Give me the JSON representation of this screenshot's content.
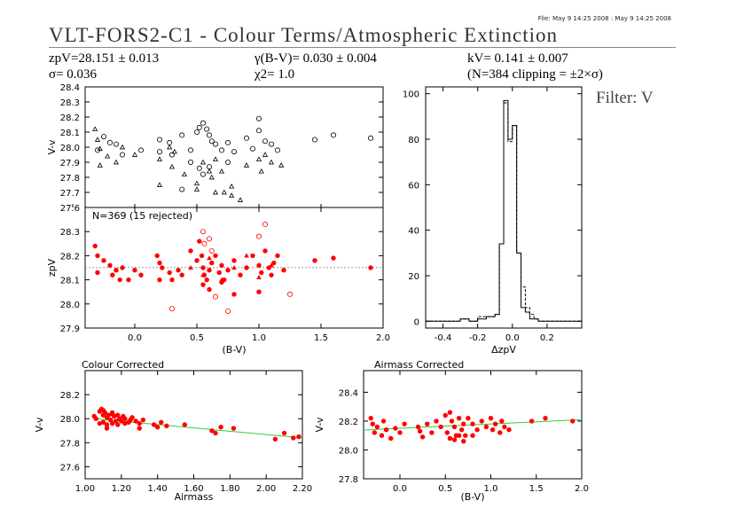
{
  "header": {
    "file_stamp": "File: May  9 14:25 2008 : May  9 14:25 2008",
    "title": "VLT-FORS2-C1 - Colour Terms/Atmospheric Extinction",
    "zp_line": "zpV=28.151 ± 0.013",
    "sigma_line": "σ= 0.036",
    "gamma_line": "γ(B-V)= 0.030 ± 0.004",
    "chi_line": "χ2= 1.0",
    "k_line": "kV= 0.141 ± 0.007",
    "n_line": "(N=384 clipping = ±2×σ)",
    "filter_label": "Filter: V"
  },
  "chart_data": [
    {
      "id": "raw-vv",
      "type": "scatter",
      "title": "",
      "xlabel": "",
      "ylabel": "V-v",
      "xlim": [
        -0.4,
        2.0
      ],
      "ylim": [
        27.6,
        28.4
      ],
      "yticks": [
        27.6,
        27.7,
        27.8,
        27.9,
        28.0,
        28.1,
        28.2,
        28.3,
        28.4
      ],
      "markers": [
        "circle",
        "triangle"
      ],
      "color": "#000000",
      "series": [
        {
          "marker": "circle",
          "x": [
            -0.3,
            -0.25,
            -0.2,
            -0.15,
            -0.1,
            0.05,
            0.2,
            0.2,
            0.28,
            0.3,
            0.38,
            0.45,
            0.5,
            0.52,
            0.55,
            0.58,
            0.6,
            0.62,
            0.65,
            0.7,
            0.75,
            0.8,
            0.9,
            1.0,
            1.05,
            1.1,
            1.15,
            1.45,
            1.6,
            1.9,
            0.38,
            0.55,
            0.6,
            0.75,
            0.95,
            1.0,
            0.45,
            0.52
          ],
          "y": [
            27.98,
            28.07,
            28.03,
            28.02,
            27.95,
            27.98,
            28.05,
            27.97,
            28.03,
            27.95,
            28.08,
            27.98,
            28.1,
            28.13,
            28.16,
            28.12,
            28.08,
            28.04,
            28.02,
            27.98,
            28.03,
            27.97,
            28.06,
            28.19,
            28.04,
            28.02,
            27.98,
            28.05,
            28.08,
            28.06,
            27.72,
            27.82,
            27.87,
            27.9,
            27.99,
            28.11,
            27.9,
            27.86
          ]
        },
        {
          "marker": "triangle",
          "x": [
            -0.32,
            -0.3,
            -0.28,
            -0.22,
            -0.15,
            -0.1,
            0.0,
            0.2,
            0.28,
            0.3,
            0.32,
            0.4,
            0.5,
            0.55,
            0.6,
            0.65,
            0.7,
            0.72,
            0.78,
            0.85,
            0.9,
            1.0,
            1.02,
            1.05,
            1.1,
            1.18,
            0.62,
            0.65,
            0.78,
            -0.28,
            0.2,
            0.5
          ],
          "y": [
            28.12,
            28.05,
            27.99,
            27.94,
            27.9,
            28.0,
            27.95,
            27.92,
            28.0,
            27.87,
            27.97,
            27.82,
            27.76,
            27.9,
            27.84,
            27.92,
            27.84,
            27.7,
            27.74,
            27.65,
            27.88,
            27.92,
            27.84,
            27.95,
            27.9,
            27.88,
            27.8,
            27.7,
            27.68,
            27.88,
            27.75,
            27.72
          ]
        }
      ]
    },
    {
      "id": "zp-vs-colour",
      "type": "scatter",
      "title": "",
      "annotation": "N=369 (15 rejected)",
      "xlabel": "(B-V)",
      "ylabel": "zpV",
      "xlim": [
        -0.4,
        2.0
      ],
      "ylim": [
        27.9,
        28.4
      ],
      "xticks": [
        0.0,
        0.5,
        1.0,
        1.5,
        2.0
      ],
      "yticks": [
        27.9,
        28.0,
        28.1,
        28.2,
        28.3
      ],
      "fit_line_y": 28.151,
      "color": "#ff0000",
      "series": [
        {
          "name": "kept",
          "marker": "filled",
          "x": [
            -0.32,
            -0.3,
            -0.25,
            -0.2,
            -0.18,
            -0.15,
            -0.12,
            -0.1,
            -0.05,
            0.0,
            0.05,
            0.18,
            0.2,
            0.22,
            0.28,
            0.3,
            0.35,
            0.38,
            0.45,
            0.5,
            0.52,
            0.54,
            0.55,
            0.56,
            0.58,
            0.6,
            0.62,
            0.65,
            0.68,
            0.7,
            0.72,
            0.75,
            0.8,
            0.85,
            0.9,
            0.95,
            1.0,
            1.02,
            1.05,
            1.08,
            1.1,
            1.12,
            1.15,
            1.2,
            1.45,
            1.6,
            1.9,
            0.55,
            0.6,
            0.7,
            0.8,
            -0.3,
            0.2,
            1.0
          ],
          "y": [
            28.24,
            28.2,
            28.18,
            28.16,
            28.12,
            28.14,
            28.1,
            28.15,
            28.1,
            28.14,
            28.12,
            28.2,
            28.17,
            28.15,
            28.13,
            28.1,
            28.14,
            28.12,
            28.22,
            28.18,
            28.26,
            28.2,
            28.15,
            28.12,
            28.1,
            28.14,
            28.17,
            28.2,
            28.13,
            28.16,
            28.1,
            28.14,
            28.18,
            28.12,
            28.15,
            28.2,
            28.16,
            28.13,
            28.22,
            28.15,
            28.12,
            28.17,
            28.2,
            28.14,
            28.18,
            28.19,
            28.15,
            28.08,
            28.06,
            28.09,
            28.04,
            28.13,
            28.1,
            28.05
          ]
        },
        {
          "name": "rejected",
          "marker": "open",
          "x": [
            0.55,
            0.6,
            0.3,
            1.05,
            0.75,
            0.65,
            1.25,
            1.0,
            0.56,
            0.62
          ],
          "y": [
            28.3,
            28.27,
            27.98,
            28.33,
            27.97,
            28.03,
            28.04,
            28.28,
            28.25,
            28.22
          ]
        },
        {
          "name": "triangles",
          "marker": "triangle",
          "x": [
            0.45,
            0.55,
            0.7,
            0.8,
            0.9,
            1.0,
            1.1,
            0.6
          ],
          "y": [
            28.15,
            28.12,
            28.1,
            28.15,
            28.2,
            28.11,
            28.16,
            28.19
          ]
        }
      ]
    },
    {
      "id": "histogram",
      "type": "bar",
      "title": "",
      "xlabel": "ΔzpV",
      "ylabel": "",
      "xlim": [
        -0.5,
        0.4
      ],
      "ylim": [
        -3,
        103
      ],
      "xticks": [
        -0.4,
        -0.2,
        0.0,
        0.2
      ],
      "yticks": [
        0,
        20,
        40,
        60,
        80,
        100
      ],
      "bin_edges": [
        -0.5,
        -0.4,
        -0.35,
        -0.3,
        -0.25,
        -0.2,
        -0.15,
        -0.1,
        -0.075,
        -0.05,
        -0.025,
        0.0,
        0.025,
        0.05,
        0.075,
        0.1,
        0.125,
        0.15,
        0.4
      ],
      "series": [
        {
          "name": "solid",
          "values": [
            0,
            0,
            0,
            1,
            0,
            1,
            2,
            3,
            34,
            97,
            80,
            86,
            30,
            6,
            4,
            1,
            1,
            0
          ]
        },
        {
          "name": "dashed",
          "values": [
            0,
            0,
            0,
            1,
            0,
            2,
            2,
            3,
            34,
            96,
            79,
            86,
            30,
            15,
            6,
            3,
            1,
            0
          ]
        }
      ]
    },
    {
      "id": "colour-corrected",
      "type": "scatter",
      "title": "Colour Corrected",
      "xlabel": "Airmass",
      "ylabel": "V-v",
      "xlim": [
        1.0,
        2.2
      ],
      "ylim": [
        27.5,
        28.4
      ],
      "xticks": [
        1.0,
        1.2,
        1.4,
        1.6,
        1.8,
        2.0,
        2.2
      ],
      "xtick_labels": [
        "1.00",
        "1.20",
        "1.40",
        "1.60",
        "1.80",
        "2.00",
        "2.20"
      ],
      "yticks": [
        27.6,
        27.8,
        28.0,
        28.2
      ],
      "fit_line": {
        "x": [
          1.05,
          2.2
        ],
        "y": [
          28.0,
          27.84
        ]
      },
      "color": "#ff0000",
      "series": [
        {
          "name": "points",
          "x": [
            1.05,
            1.06,
            1.08,
            1.08,
            1.09,
            1.1,
            1.1,
            1.11,
            1.12,
            1.12,
            1.13,
            1.14,
            1.15,
            1.15,
            1.16,
            1.17,
            1.18,
            1.18,
            1.19,
            1.2,
            1.21,
            1.22,
            1.22,
            1.24,
            1.25,
            1.26,
            1.28,
            1.3,
            1.32,
            1.38,
            1.4,
            1.42,
            1.45,
            1.55,
            1.7,
            1.72,
            1.75,
            1.82,
            2.05,
            2.1,
            2.15,
            2.18,
            1.3,
            1.1,
            1.15,
            1.12
          ],
          "y": [
            28.02,
            28.0,
            28.06,
            27.96,
            28.08,
            28.03,
            27.97,
            28.05,
            28.01,
            27.95,
            28.03,
            27.99,
            28.04,
            27.96,
            28.02,
            27.98,
            28.03,
            27.95,
            28.0,
            27.98,
            28.02,
            27.96,
            28.0,
            27.97,
            27.99,
            28.01,
            27.98,
            27.96,
            27.99,
            27.95,
            27.93,
            27.97,
            27.94,
            27.95,
            27.9,
            27.88,
            27.93,
            27.92,
            27.83,
            27.88,
            27.84,
            27.85,
            27.92,
            28.07,
            28.05,
            27.92
          ]
        }
      ]
    },
    {
      "id": "airmass-corrected",
      "type": "scatter",
      "title": "Airmass Corrected",
      "xlabel": "(B-V)",
      "ylabel": "V-v",
      "xlim": [
        -0.4,
        2.0
      ],
      "ylim": [
        27.8,
        28.55
      ],
      "xticks": [
        0.0,
        0.5,
        1.0,
        1.5,
        2.0
      ],
      "yticks": [
        27.8,
        28.0,
        28.2,
        28.4
      ],
      "fit_line": {
        "x": [
          -0.4,
          2.0
        ],
        "y": [
          28.138,
          28.21
        ]
      },
      "color": "#ff0000",
      "series": [
        {
          "name": "points",
          "x": [
            -0.32,
            -0.3,
            -0.28,
            -0.25,
            -0.2,
            -0.18,
            -0.15,
            -0.1,
            -0.05,
            0.0,
            0.05,
            0.2,
            0.22,
            0.25,
            0.3,
            0.35,
            0.4,
            0.45,
            0.5,
            0.52,
            0.55,
            0.57,
            0.6,
            0.62,
            0.65,
            0.68,
            0.7,
            0.72,
            0.75,
            0.8,
            0.85,
            0.9,
            0.95,
            1.0,
            1.02,
            1.05,
            1.1,
            1.12,
            1.15,
            1.2,
            1.45,
            1.6,
            1.9,
            0.55,
            0.6,
            0.65,
            0.7,
            0.8
          ],
          "y": [
            28.22,
            28.18,
            28.12,
            28.16,
            28.1,
            28.2,
            28.14,
            28.08,
            28.15,
            28.12,
            28.18,
            28.16,
            28.13,
            28.09,
            28.18,
            28.12,
            28.2,
            28.16,
            28.24,
            28.12,
            28.26,
            28.2,
            28.16,
            28.1,
            28.22,
            28.14,
            28.18,
            28.1,
            28.22,
            28.18,
            28.14,
            28.2,
            28.16,
            28.22,
            28.14,
            28.18,
            28.12,
            28.2,
            28.16,
            28.14,
            28.2,
            28.22,
            28.2,
            28.08,
            28.07,
            28.1,
            28.06,
            28.1
          ]
        }
      ]
    }
  ]
}
